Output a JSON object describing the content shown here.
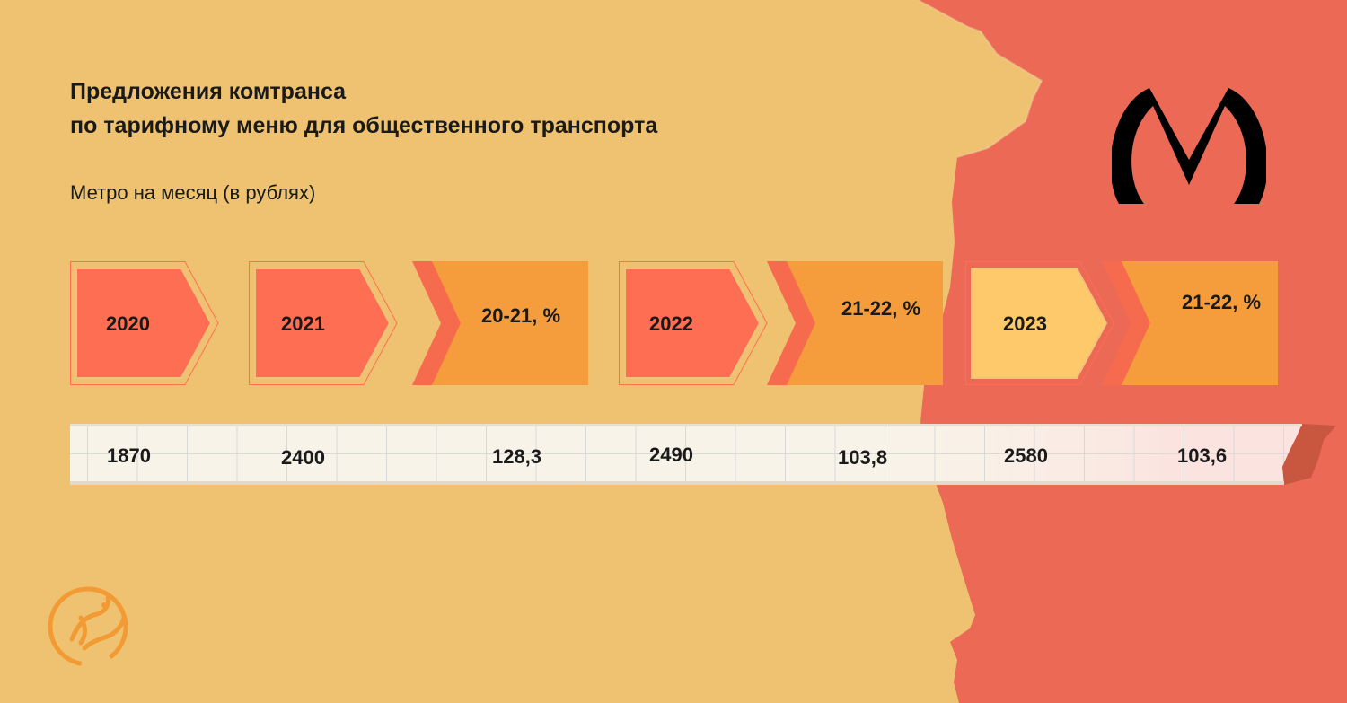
{
  "title_line1": "Предложения комтранса",
  "title_line2": "по тарифному меню для общественного транспорта",
  "subtitle": "Метро на месяц (в рублях)",
  "colors": {
    "background_left": "#eec270",
    "background_right": "#ec6955",
    "year_box": "#fe6e53",
    "year_box_highlight": "#fdc96a",
    "change_box": "#f59d3c",
    "change_accent": "#f66b4d"
  },
  "icons": {
    "metro": "metro-logo-icon",
    "org": "bird-logo-icon"
  },
  "chart_data": {
    "type": "table",
    "columns": [
      "2020",
      "2021",
      "20-21, %",
      "2022",
      "21-22, %",
      "2023",
      "21-22, %"
    ],
    "values": [
      "1870",
      "2400",
      "128,3",
      "2490",
      "103,8",
      "2580",
      "103,6"
    ],
    "highlighted_column": "2023"
  }
}
